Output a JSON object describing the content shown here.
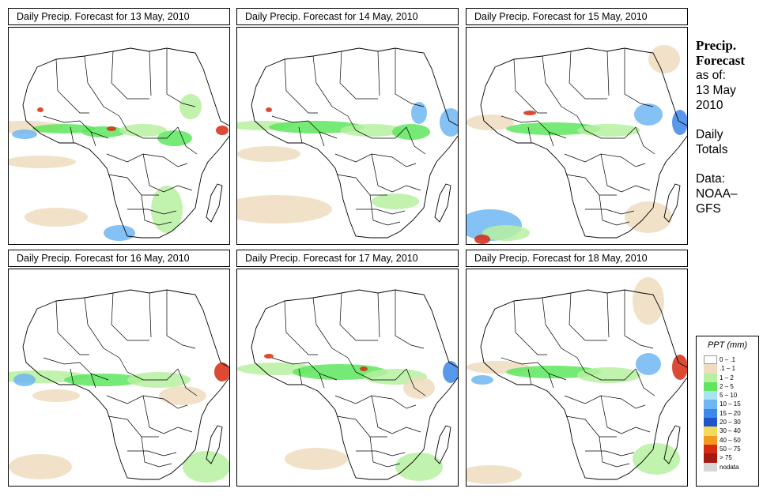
{
  "panels": [
    {
      "title": "Daily Precip. Forecast for  13 May, 2010"
    },
    {
      "title": "Daily Precip. Forecast for  14 May, 2010"
    },
    {
      "title": "Daily Precip. Forecast for  15 May, 2010"
    },
    {
      "title": "Daily Precip. Forecast for  16 May, 2010"
    },
    {
      "title": "Daily Precip. Forecast for  17 May, 2010"
    },
    {
      "title": "Daily Precip. Forecast for  18 May, 2010"
    }
  ],
  "sidebar": {
    "title_line1": "Precip.",
    "title_line2": "Forecast",
    "asof_label": "as of:",
    "date_line1": "13 May",
    "date_line2": "2010",
    "totals_line1": "Daily",
    "totals_line2": "Totals",
    "data_line1": "Data:",
    "data_line2": "NOAA–",
    "data_line3": "GFS"
  },
  "legend": {
    "title": "PPT (mm)",
    "items": [
      {
        "label": "0 – .1",
        "color": "#ffffff"
      },
      {
        "label": ".1 – 1",
        "color": "#efdcc0"
      },
      {
        "label": "1 – 2",
        "color": "#b6f0a0"
      },
      {
        "label": "2 – 5",
        "color": "#5ee65e"
      },
      {
        "label": "5 – 10",
        "color": "#a8e4f0"
      },
      {
        "label": "10 – 15",
        "color": "#6fb6f2"
      },
      {
        "label": "15 – 20",
        "color": "#3d86ea"
      },
      {
        "label": "20 – 30",
        "color": "#1f55c8"
      },
      {
        "label": "30 – 40",
        "color": "#f2da5c"
      },
      {
        "label": "40 – 50",
        "color": "#f59a1e"
      },
      {
        "label": "50 – 75",
        "color": "#d72a10"
      },
      {
        "label": "> 75",
        "color": "#a51a14"
      },
      {
        "label": "nodata",
        "color": "#d6d6d6"
      }
    ]
  },
  "colors": {
    "trace": "#efdcc0",
    "light": "#b6f0a0",
    "moderate": "#5ee65e",
    "heavy": "#6fb6f2",
    "very_heavy": "#3d86ea",
    "extreme": "#d72a10"
  }
}
